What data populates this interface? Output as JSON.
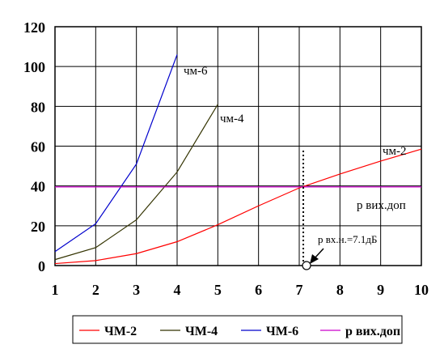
{
  "chart_data": {
    "type": "line",
    "title": "",
    "xlabel": "",
    "ylabel": "",
    "xlim": [
      1,
      10
    ],
    "ylim": [
      0,
      120
    ],
    "x_ticks": [
      1,
      2,
      3,
      4,
      5,
      6,
      7,
      8,
      9,
      10
    ],
    "y_ticks": [
      0,
      20,
      40,
      60,
      80,
      100,
      120
    ],
    "grid": true,
    "legend_position": "bottom",
    "series": [
      {
        "name": "ЧМ-2",
        "inline_label": "чм-2",
        "color": "#ff0000",
        "x": [
          1,
          2,
          3,
          4,
          5,
          6,
          7,
          8,
          9,
          10
        ],
        "y": [
          1,
          2.5,
          6,
          12,
          20.5,
          30,
          39,
          46,
          52.5,
          58.5
        ]
      },
      {
        "name": "ЧМ-4",
        "inline_label": "чм-4",
        "color": "#333300",
        "x": [
          1,
          2,
          3,
          4,
          5
        ],
        "y": [
          3,
          9,
          23,
          47,
          81
        ]
      },
      {
        "name": "ЧМ-6",
        "inline_label": "чм-6",
        "color": "#0000cc",
        "x": [
          1,
          2,
          3,
          4
        ],
        "y": [
          7,
          21,
          51,
          106
        ]
      },
      {
        "name": "р вих.доп",
        "inline_label": "р вих.доп",
        "color": "#cc00cc",
        "x": [
          1,
          10
        ],
        "y": [
          39.5,
          39.5
        ]
      }
    ],
    "annotation": {
      "text": "р вх.н.=7.1дБ",
      "x": 7.1,
      "y": 0,
      "line_style": "dotted"
    }
  }
}
